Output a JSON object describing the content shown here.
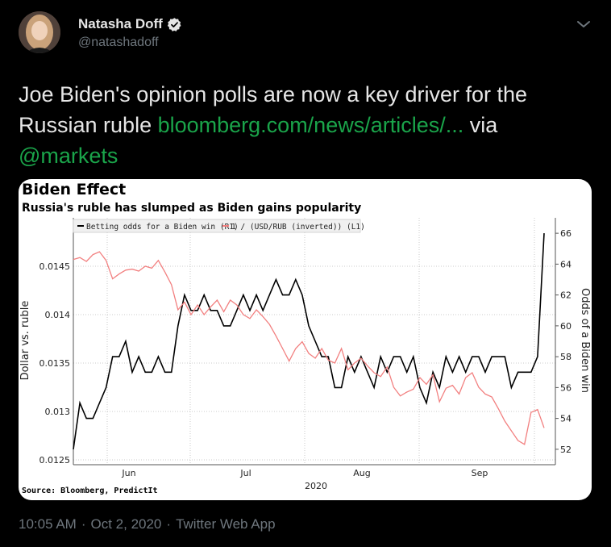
{
  "author": {
    "name": "Natasha Doff",
    "handle": "@natashadoff",
    "verified": true
  },
  "tweet": {
    "text_plain": "Joe Biden's opinion polls are now a key driver for the Russian ruble ",
    "link_text": "bloomberg.com/news/articles/...",
    "via_text": " via ",
    "mention_text": "@markets"
  },
  "footer": {
    "time": "10:05 AM",
    "sep1": "·",
    "date": "Oct 2, 2020",
    "sep2": "·",
    "app": "Twitter Web App"
  },
  "colors": {
    "background": "#000000",
    "link": "#1aa44a",
    "muted": "#6e767d",
    "odds_series": "#000000",
    "ruble_series": "#f28080"
  },
  "icons": [
    "verified-badge-icon",
    "chevron-down-icon"
  ],
  "chart_data": {
    "type": "line",
    "title": "Biden Effect",
    "subtitle": "Russia's ruble has slumped as Biden gains popularity",
    "source": "Source: Bloomberg, PredictIt",
    "xlabel": "2020",
    "x_ticks": [
      "Jun",
      "Jul",
      "Aug",
      "Sep"
    ],
    "ylabel_left": "Dollar vs. ruble",
    "ylabel_right": "Odds of a Biden win",
    "yticks_left": [
      "0.0145",
      "0.014",
      "0.0135",
      "0.013",
      "0.0125"
    ],
    "yticks_right": [
      "66",
      "64",
      "62",
      "60",
      "58",
      "56",
      "54",
      "52"
    ],
    "ylim_left": [
      0.01245,
      0.015
    ],
    "ylim_right": [
      51,
      67
    ],
    "legend_position": "top-left",
    "series": [
      {
        "name": "Betting odds for a Biden win (R1)",
        "axis": "right",
        "values": [
          52,
          55,
          54,
          54,
          55,
          56,
          58,
          58,
          59,
          57,
          58,
          57,
          57,
          58,
          57,
          57,
          60,
          62,
          61,
          61,
          62,
          61,
          61,
          60,
          60,
          61,
          62,
          61,
          62,
          61,
          62,
          63,
          62,
          62,
          63,
          62,
          60,
          59,
          58,
          58,
          56,
          56,
          58,
          57,
          58,
          57,
          56,
          58,
          57,
          58,
          58,
          57,
          58,
          56,
          55,
          57,
          56,
          58,
          57,
          58,
          57,
          58,
          58,
          57,
          58,
          58,
          58,
          56,
          57,
          57,
          57,
          58,
          66
        ]
      },
      {
        "name": "1 / (USD/RUB (inverted)) (L1)",
        "axis": "left",
        "values": [
          0.01457,
          0.01459,
          0.01455,
          0.01462,
          0.01465,
          0.01456,
          0.01437,
          0.01442,
          0.01446,
          0.01447,
          0.01445,
          0.0145,
          0.01448,
          0.01456,
          0.01444,
          0.01431,
          0.01405,
          0.01413,
          0.014,
          0.0141,
          0.014,
          0.01408,
          0.01415,
          0.01403,
          0.01415,
          0.0141,
          0.014,
          0.01396,
          0.01405,
          0.01398,
          0.0139,
          0.01378,
          0.01365,
          0.01352,
          0.01365,
          0.01372,
          0.0136,
          0.01355,
          0.01365,
          0.01353,
          0.0135,
          0.01365,
          0.01343,
          0.0135,
          0.01355,
          0.01347,
          0.0134,
          0.01336,
          0.01346,
          0.01325,
          0.01316,
          0.0132,
          0.01323,
          0.01335,
          0.01328,
          0.01338,
          0.0131,
          0.01324,
          0.01327,
          0.01318,
          0.01335,
          0.0134,
          0.01325,
          0.01318,
          0.01315,
          0.01303,
          0.0129,
          0.0128,
          0.0127,
          0.01266,
          0.01299,
          0.01302,
          0.01283
        ]
      }
    ]
  }
}
